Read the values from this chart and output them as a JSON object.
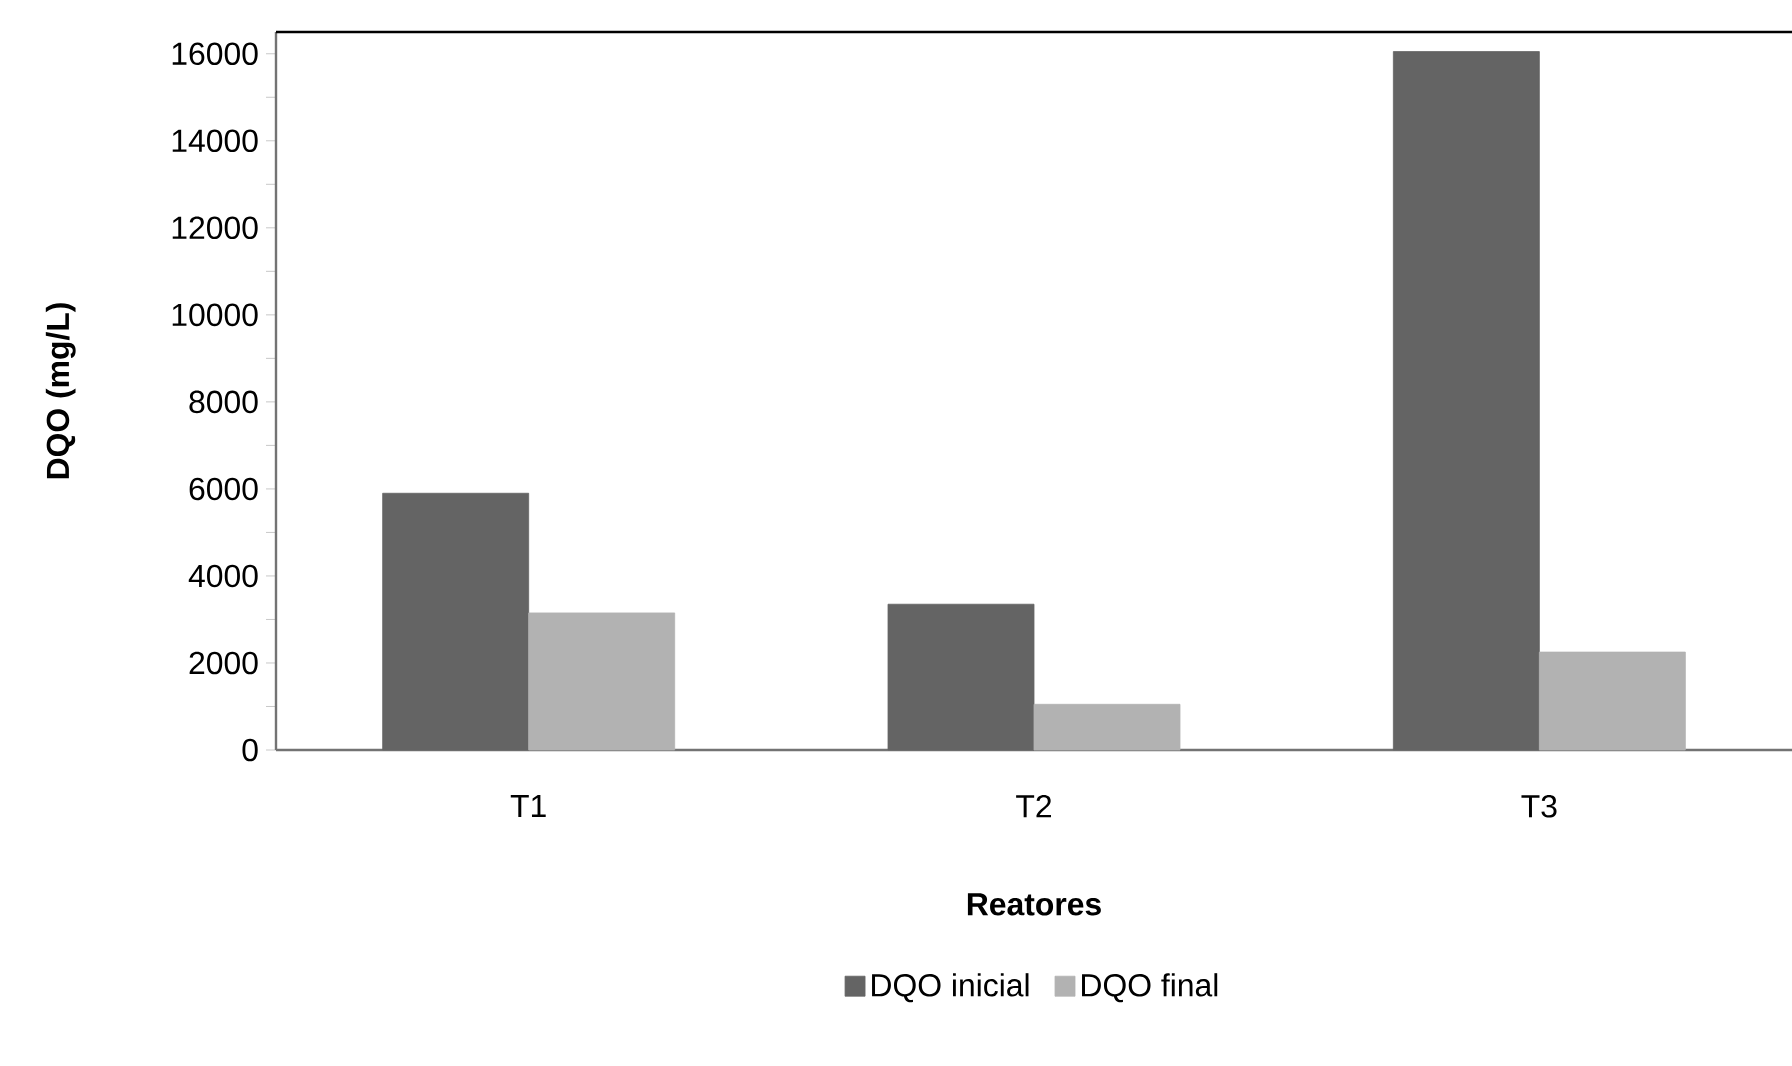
{
  "chart_data": {
    "type": "bar",
    "xlabel": "Reatores",
    "ylabel": "DQO (mg/L)",
    "categories": [
      "T1",
      "T2",
      "T3"
    ],
    "series": [
      {
        "name": "DQO inicial",
        "color": "#646464",
        "values": [
          5900,
          3350,
          16050
        ]
      },
      {
        "name": "DQO final",
        "color": "#b2b2b2",
        "values": [
          3150,
          1050,
          2250
        ]
      }
    ],
    "ylim": [
      0,
      16500
    ],
    "yticks": [
      0,
      2000,
      4000,
      6000,
      8000,
      10000,
      12000,
      14000,
      16000
    ],
    "grid": false,
    "legend": "bottom"
  }
}
